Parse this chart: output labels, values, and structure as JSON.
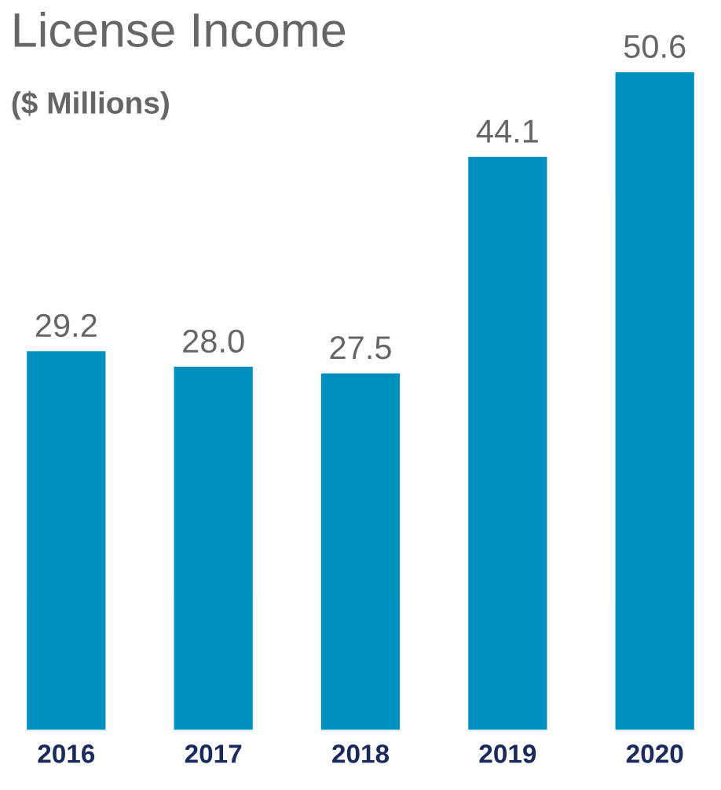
{
  "chart_data": {
    "type": "bar",
    "title": "License Income",
    "subtitle": "($ Millions)",
    "categories": [
      "2016",
      "2017",
      "2018",
      "2019",
      "2020"
    ],
    "values": [
      29.2,
      28.0,
      27.5,
      44.1,
      50.6
    ],
    "value_labels": [
      "29.2",
      "28.0",
      "27.5",
      "44.1",
      "50.6"
    ],
    "color": "#0090c0",
    "tick_labels": "x",
    "grid": false
  }
}
